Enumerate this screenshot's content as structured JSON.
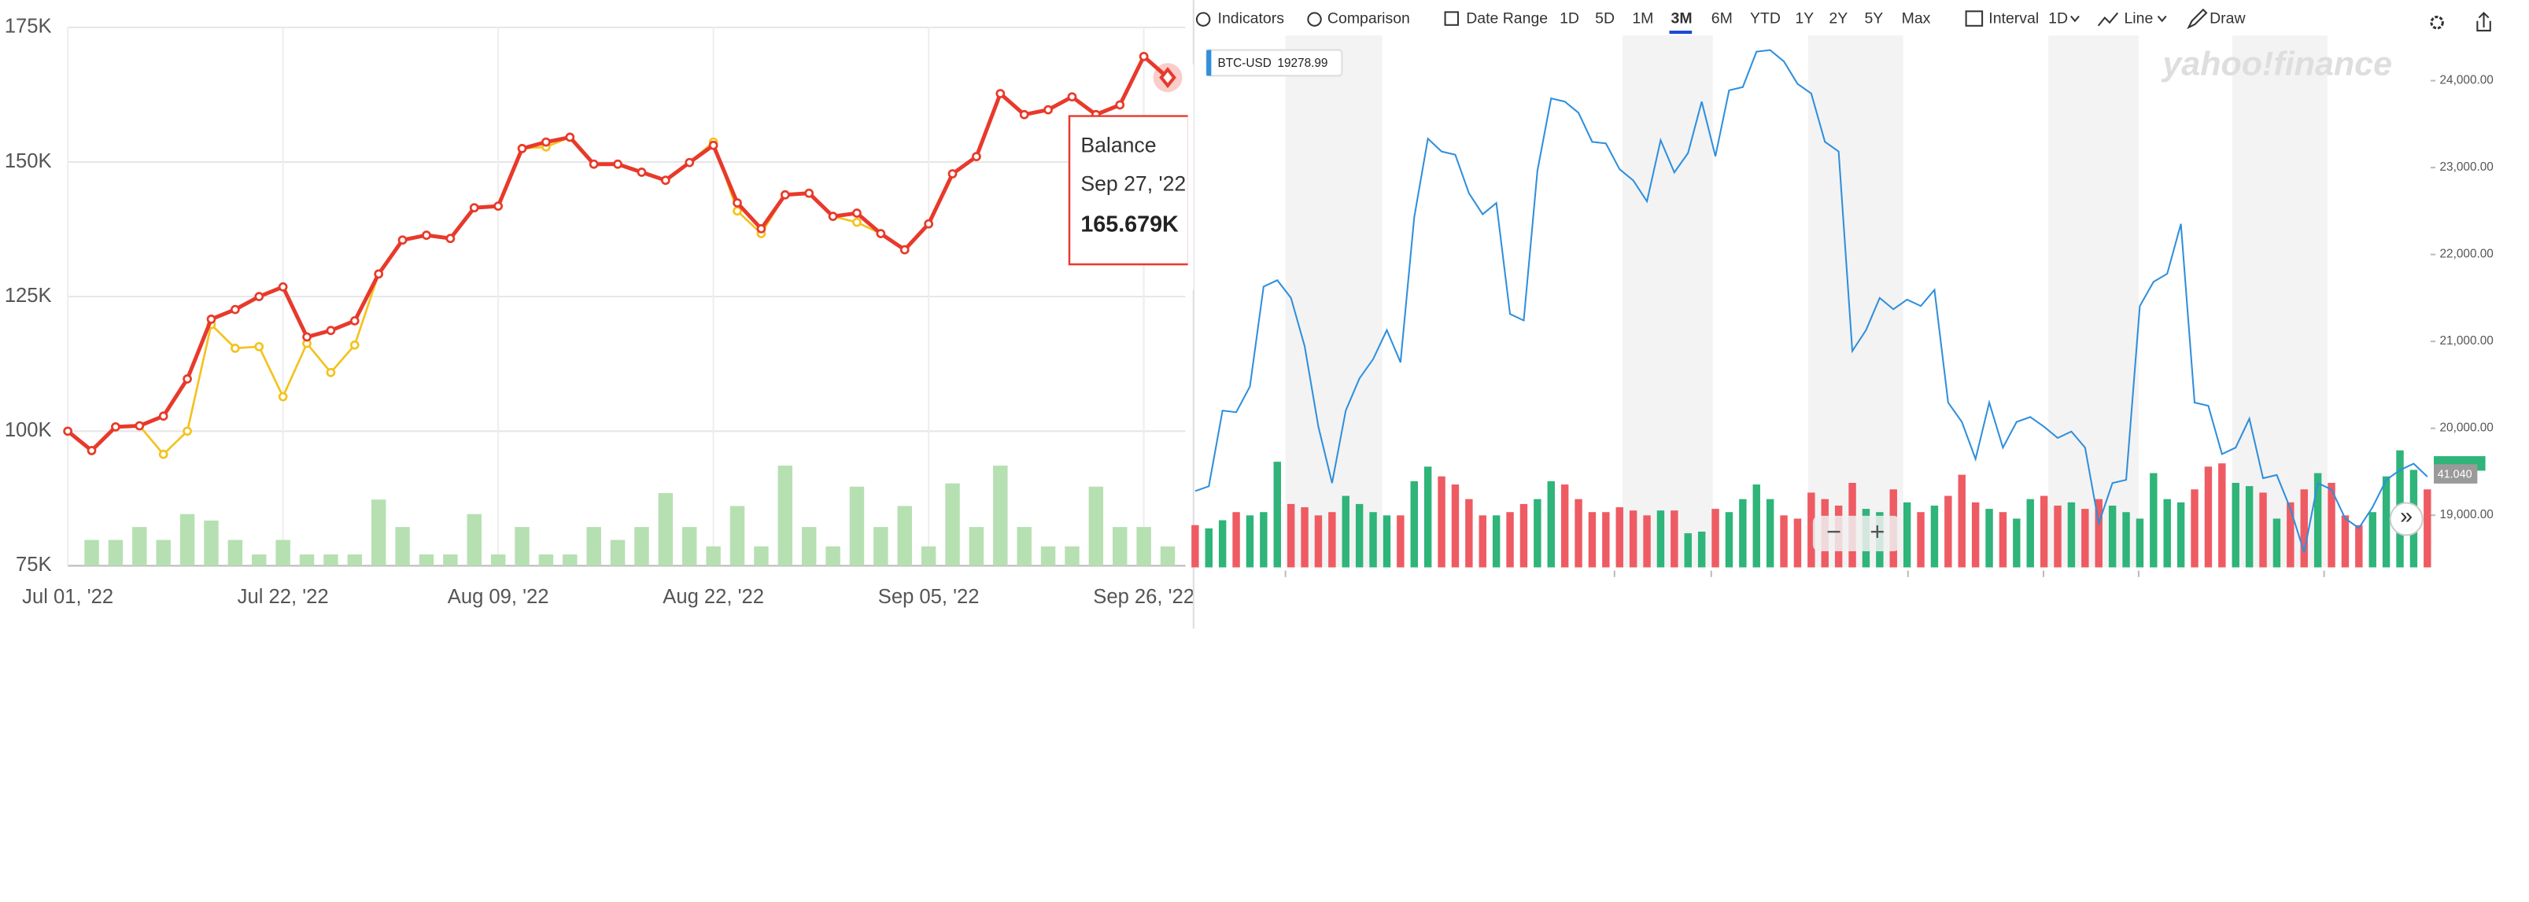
{
  "chart_data": [
    {
      "type": "line",
      "categories": [
        "Jul 01, '22",
        null,
        null,
        null,
        null,
        null,
        null,
        null,
        null,
        "Jul 22, '22",
        null,
        null,
        null,
        null,
        null,
        null,
        null,
        null,
        "Aug 09, '22",
        null,
        null,
        null,
        null,
        null,
        null,
        null,
        null,
        "Aug 22, '22",
        null,
        null,
        null,
        null,
        null,
        null,
        null,
        null,
        "Sep 05, '22",
        null,
        null,
        null,
        null,
        null,
        null,
        null,
        null,
        "Sep 26, '22",
        null
      ],
      "ylim": [
        75,
        175
      ],
      "yticks": [
        {
          "value": 75,
          "label": "75K"
        },
        {
          "value": 100,
          "label": "100K"
        },
        {
          "value": 125,
          "label": "125K"
        },
        {
          "value": 150,
          "label": "150K"
        },
        {
          "value": 175,
          "label": "175K"
        }
      ],
      "grid": true,
      "series": [
        {
          "name": "Balance",
          "color": "#e8392b",
          "values": [
            100,
            96.4,
            100.8,
            101,
            102.8,
            109.7,
            120.8,
            122.6,
            125,
            126.8,
            117.5,
            118.7,
            120.5,
            129.2,
            135.5,
            136.4,
            135.8,
            141.5,
            141.8,
            152.5,
            153.7,
            154.6,
            149.6,
            149.6,
            148.1,
            146.6,
            149.9,
            153.1,
            142.4,
            137.6,
            143.9,
            144.2,
            139.9,
            140.5,
            136.7,
            133.7,
            138.5,
            147.8,
            151,
            162.7,
            158.8,
            159.7,
            162.1,
            158.8,
            160.6,
            169.6,
            165.679
          ]
        },
        {
          "color": "#f4c21d",
          "values": [
            100,
            96.4,
            100.8,
            101,
            95.7,
            100,
            119.8,
            115.4,
            115.7,
            106.4,
            116.3,
            110.9,
            116,
            129.2,
            135.5,
            136.4,
            135.8,
            141.5,
            141.8,
            152.5,
            152.8,
            154.6,
            149.6,
            149.6,
            148.1,
            146.6,
            149.9,
            153.7,
            140.9,
            136.7,
            143.9,
            144.2,
            139.9,
            138.8,
            136.7,
            133.7,
            138.5,
            147.8,
            151,
            162.7,
            158.8,
            159.7,
            162.1,
            158.8,
            160.6,
            169.6,
            165.679
          ]
        }
      ],
      "volume": {
        "color": "#b6e0b2",
        "values": [
          null,
          16,
          16,
          24,
          16,
          32,
          28,
          16,
          7,
          16,
          7,
          7,
          7,
          41,
          24,
          7,
          7,
          32,
          7,
          24,
          7,
          7,
          24,
          16,
          24,
          45,
          24,
          12,
          37,
          12,
          62,
          24,
          12,
          49,
          24,
          37,
          12,
          51,
          24,
          62,
          24,
          12,
          12,
          49,
          24,
          24,
          12
        ]
      },
      "tooltip": {
        "index": 46,
        "date": "Sep 27, '22",
        "value_label": "165.679K"
      }
    },
    {
      "type": "line",
      "symbol": "BTC-USD",
      "price_label": "19278.99",
      "color": "#2f8fdc",
      "ylim": [
        18400,
        24520
      ],
      "yticks": [
        {
          "value": 19000,
          "label": "19,000.00"
        },
        {
          "value": 20000,
          "label": "20,000.00"
        },
        {
          "value": 21000,
          "label": "21,000.00"
        },
        {
          "value": 22000,
          "label": "22,000.00"
        },
        {
          "value": 23000,
          "label": "23,000.00"
        },
        {
          "value": 24000,
          "label": "24,000.00"
        }
      ],
      "values": [
        19278,
        19333,
        20204,
        20185,
        20481,
        21630,
        21704,
        21500,
        20944,
        20019,
        19370,
        20204,
        20574,
        20796,
        21130,
        20759,
        22426,
        23333,
        23185,
        23148,
        22704,
        22463,
        22593,
        21315,
        21241,
        22963,
        23796,
        23759,
        23630,
        23296,
        23278,
        22981,
        22852,
        22611,
        23315,
        22944,
        23167,
        23759,
        23130,
        23889,
        23926,
        24333,
        24352,
        24222,
        23963,
        23852,
        23296,
        23185,
        20889,
        21130,
        21500,
        21370,
        21481,
        21407,
        21593,
        20296,
        20074,
        19648,
        20296,
        19778,
        20074,
        20130,
        20019,
        19889,
        19963,
        19778,
        18907,
        19370,
        19407,
        21407,
        21685,
        21778,
        22352,
        20296,
        20259,
        19704,
        19778,
        20111,
        19426,
        19463,
        19074,
        18574,
        19370,
        19296,
        18963,
        18852,
        19093,
        19407,
        19519,
        19593,
        19444
      ],
      "volume": {
        "up_color": "#2fb479",
        "down_color": "#ee5b63",
        "values": [
          26,
          24,
          29,
          34,
          32,
          34,
          65,
          39,
          37,
          32,
          34,
          44,
          39,
          34,
          32,
          32,
          53,
          62,
          56,
          51,
          42,
          32,
          32,
          34,
          39,
          42,
          53,
          51,
          42,
          34,
          34,
          37,
          35,
          32,
          35,
          35,
          21,
          22,
          36,
          34,
          42,
          51,
          42,
          32,
          30,
          46,
          42,
          38,
          52,
          36,
          34,
          48,
          40,
          34,
          38,
          44,
          57,
          40,
          36,
          34,
          30,
          42,
          44,
          38,
          40,
          36,
          42,
          38,
          34,
          30,
          58,
          42,
          40,
          48,
          62,
          64,
          52,
          50,
          46,
          30,
          40,
          48,
          58,
          52,
          32,
          26,
          34,
          56,
          72,
          60,
          48
        ]
      },
      "volume_tag": "41.040",
      "watermark": "yahoo!finance"
    }
  ],
  "toolbar": {
    "indicators": "Indicators",
    "comparison": "Comparison",
    "date_range": "Date Range",
    "ranges": [
      "1D",
      "5D",
      "1M",
      "3M",
      "6M",
      "YTD",
      "1Y",
      "2Y",
      "5Y",
      "Max"
    ],
    "selected_range": 3,
    "interval": "Interval",
    "interval_value": "1D",
    "chart_style": "Line",
    "draw": "Draw"
  },
  "zoom": {
    "out": "−",
    "in": "+"
  },
  "scroll": "»"
}
